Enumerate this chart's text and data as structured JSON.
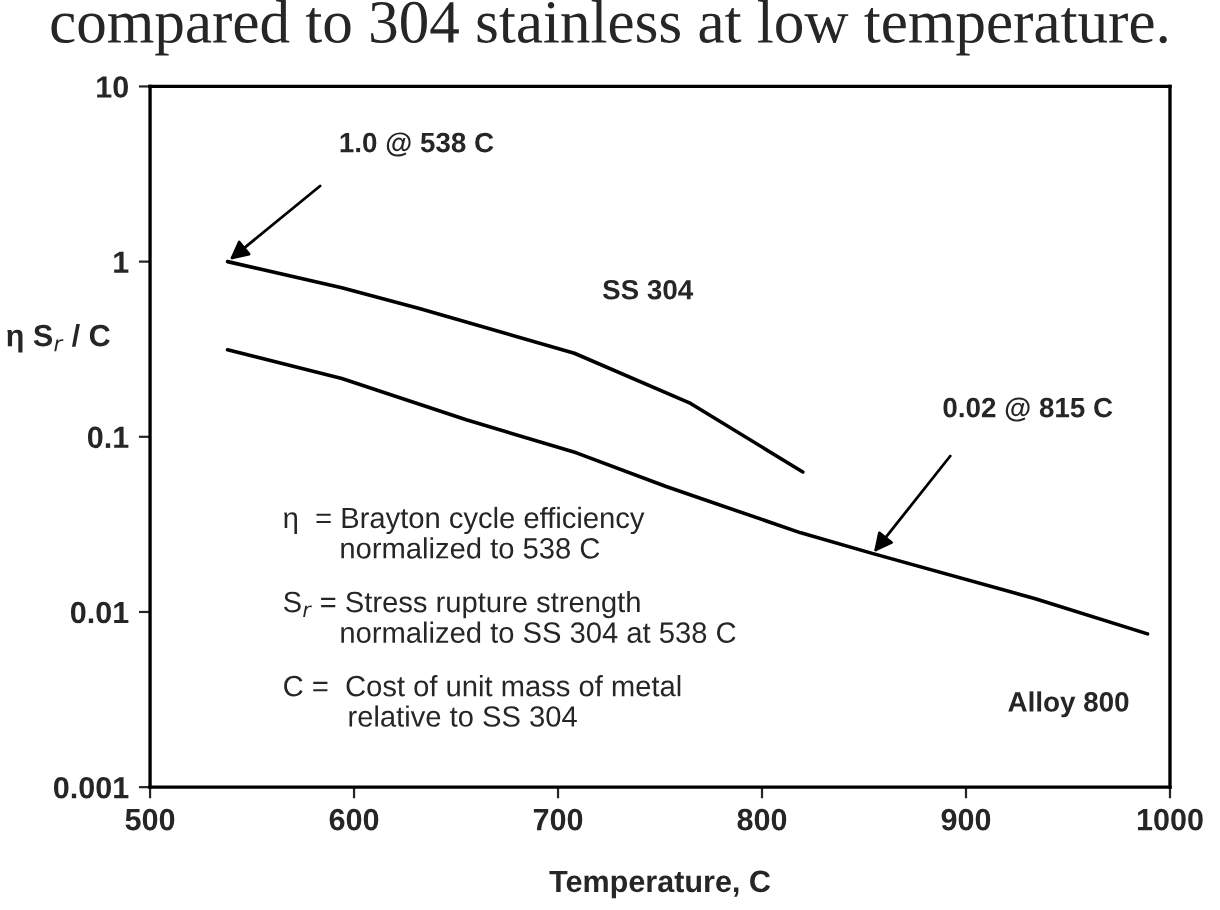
{
  "chart_data": {
    "type": "line",
    "title": "compared to 304 stainless at low temperature.",
    "xlabel": "Temperature, C",
    "ylabel": "η S$_{r}$ / C",
    "series": [
      {
        "name": "SS 304",
        "color": "#000000",
        "x": [
          538,
          594,
          632,
          708,
          765,
          820
        ],
        "values": [
          1.0,
          0.71,
          0.54,
          0.3,
          0.155,
          0.063
        ]
      },
      {
        "name": "Alloy 800",
        "color": "#000000",
        "x": [
          538,
          594,
          655,
          709,
          753,
          819,
          854,
          934,
          989
        ],
        "values": [
          0.314,
          0.215,
          0.125,
          0.081,
          0.052,
          0.0283,
          0.0216,
          0.0119,
          0.0075
        ]
      }
    ],
    "annotations": [
      {
        "text": "1.0 @ 538 C",
        "x": 538,
        "y": 1.0
      },
      {
        "text": "0.02 @ 815 C",
        "x": 854,
        "y": 0.0213
      },
      "η  = Brayton cycle efficiency\n       normalized to 538 C",
      "S$_{r}$ = Stress rupture strength\n       normalized to SS 304 at 538 C",
      "C =  Cost of unit mass of metal\n        relative to SS 304"
    ],
    "log": "y",
    "xlim": [
      500,
      1000
    ],
    "ylim": [
      0.001,
      10
    ],
    "xticks": [
      500,
      600,
      700,
      800,
      900,
      1000
    ],
    "yticks": [
      0.001,
      0.01,
      0.1,
      1,
      10
    ],
    "grid": false,
    "legend": false,
    "marker": "none",
    "line_style": "solid"
  }
}
